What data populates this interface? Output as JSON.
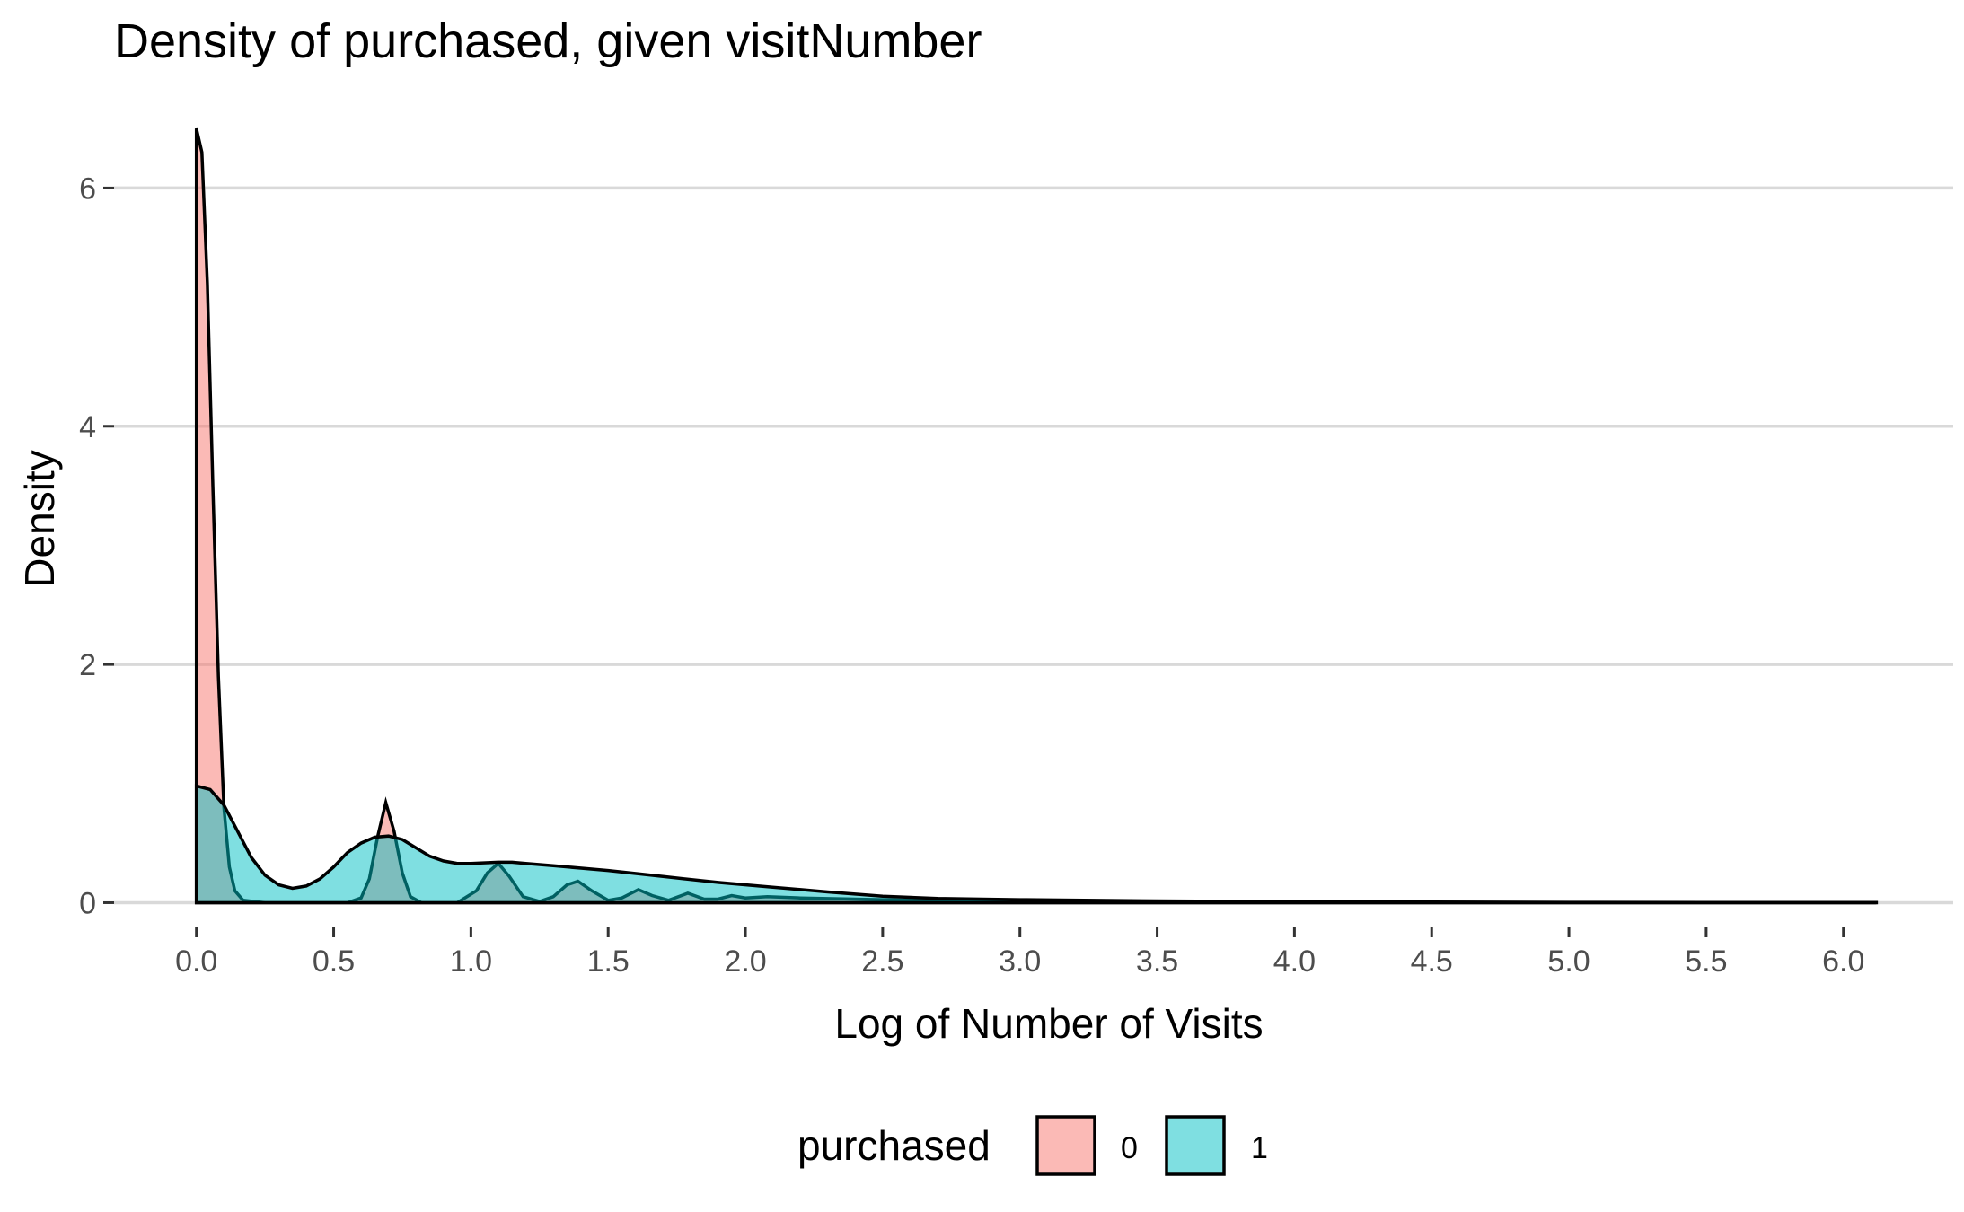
{
  "chart_data": {
    "type": "area",
    "title": "Density of purchased, given visitNumber",
    "xlabel": "Log of Number of Visits",
    "ylabel": "Density",
    "xlim": [
      -0.3,
      6.4
    ],
    "ylim": [
      -0.2,
      6.9
    ],
    "x_ticks": [
      0.0,
      0.5,
      1.0,
      1.5,
      2.0,
      2.5,
      3.0,
      3.5,
      4.0,
      4.5,
      5.0,
      5.5,
      6.0
    ],
    "x_tick_labels": [
      "0.0",
      "0.5",
      "1.0",
      "1.5",
      "2.0",
      "2.5",
      "3.0",
      "3.5",
      "4.0",
      "4.5",
      "5.0",
      "5.5",
      "6.0"
    ],
    "y_ticks": [
      0,
      2,
      4,
      6
    ],
    "y_tick_labels": [
      "0",
      "2",
      "4",
      "6"
    ],
    "grid": "horizontal major",
    "legend": {
      "title": "purchased",
      "position": "bottom"
    },
    "series": [
      {
        "name": "0",
        "color": "#F8766D",
        "points": [
          [
            0.0,
            6.5
          ],
          [
            0.02,
            6.3
          ],
          [
            0.04,
            5.2
          ],
          [
            0.06,
            3.5
          ],
          [
            0.08,
            1.9
          ],
          [
            0.1,
            0.8
          ],
          [
            0.12,
            0.3
          ],
          [
            0.14,
            0.1
          ],
          [
            0.17,
            0.02
          ],
          [
            0.25,
            0.0
          ],
          [
            0.55,
            0.0
          ],
          [
            0.6,
            0.04
          ],
          [
            0.63,
            0.2
          ],
          [
            0.66,
            0.55
          ],
          [
            0.69,
            0.84
          ],
          [
            0.72,
            0.6
          ],
          [
            0.75,
            0.25
          ],
          [
            0.78,
            0.05
          ],
          [
            0.82,
            0.0
          ],
          [
            0.95,
            0.0
          ],
          [
            1.02,
            0.1
          ],
          [
            1.06,
            0.25
          ],
          [
            1.1,
            0.33
          ],
          [
            1.14,
            0.22
          ],
          [
            1.19,
            0.05
          ],
          [
            1.25,
            0.01
          ],
          [
            1.3,
            0.05
          ],
          [
            1.35,
            0.15
          ],
          [
            1.39,
            0.18
          ],
          [
            1.44,
            0.1
          ],
          [
            1.5,
            0.02
          ],
          [
            1.55,
            0.04
          ],
          [
            1.61,
            0.11
          ],
          [
            1.66,
            0.06
          ],
          [
            1.72,
            0.02
          ],
          [
            1.79,
            0.08
          ],
          [
            1.85,
            0.03
          ],
          [
            1.9,
            0.03
          ],
          [
            1.95,
            0.06
          ],
          [
            2.0,
            0.04
          ],
          [
            2.08,
            0.05
          ],
          [
            2.2,
            0.04
          ],
          [
            2.4,
            0.03
          ],
          [
            2.6,
            0.02
          ],
          [
            3.0,
            0.01
          ],
          [
            4.0,
            0.005
          ],
          [
            5.0,
            0.0
          ],
          [
            6.12,
            0.0
          ]
        ]
      },
      {
        "name": "1",
        "color": "#00BFC4",
        "points": [
          [
            0.0,
            0.98
          ],
          [
            0.05,
            0.95
          ],
          [
            0.1,
            0.82
          ],
          [
            0.15,
            0.6
          ],
          [
            0.2,
            0.38
          ],
          [
            0.25,
            0.23
          ],
          [
            0.3,
            0.15
          ],
          [
            0.35,
            0.12
          ],
          [
            0.4,
            0.14
          ],
          [
            0.45,
            0.2
          ],
          [
            0.5,
            0.3
          ],
          [
            0.55,
            0.42
          ],
          [
            0.6,
            0.5
          ],
          [
            0.65,
            0.55
          ],
          [
            0.7,
            0.56
          ],
          [
            0.75,
            0.53
          ],
          [
            0.8,
            0.46
          ],
          [
            0.85,
            0.39
          ],
          [
            0.9,
            0.35
          ],
          [
            0.95,
            0.33
          ],
          [
            1.0,
            0.33
          ],
          [
            1.1,
            0.34
          ],
          [
            1.15,
            0.34
          ],
          [
            1.2,
            0.33
          ],
          [
            1.3,
            0.31
          ],
          [
            1.5,
            0.27
          ],
          [
            1.7,
            0.22
          ],
          [
            1.9,
            0.17
          ],
          [
            2.1,
            0.13
          ],
          [
            2.3,
            0.09
          ],
          [
            2.5,
            0.055
          ],
          [
            2.7,
            0.035
          ],
          [
            3.0,
            0.025
          ],
          [
            3.5,
            0.015
          ],
          [
            4.0,
            0.008
          ],
          [
            4.5,
            0.005
          ],
          [
            5.0,
            0.003
          ],
          [
            5.5,
            0.002
          ],
          [
            6.12,
            0.001
          ]
        ]
      }
    ]
  }
}
